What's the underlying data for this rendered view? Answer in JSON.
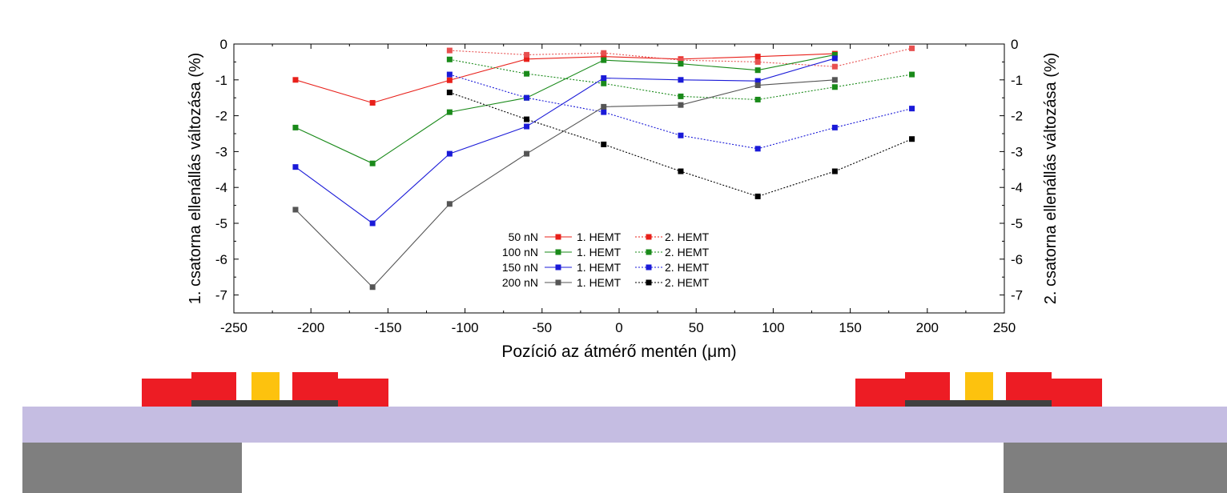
{
  "chart_data": {
    "type": "line",
    "xlabel": "Pozíció az átmérő mentén (μm)",
    "ylabel_left": "1. csatorna ellenállás változása (%)",
    "ylabel_right": "2. csatorna ellenállás változása (%)",
    "xlim": [
      -250,
      250
    ],
    "ylim": [
      -7.5,
      0
    ],
    "xticks": [
      "-250",
      "-200",
      "-150",
      "-100",
      "-50",
      "0",
      "50",
      "100",
      "150",
      "200",
      "250"
    ],
    "yticks": [
      "0",
      "-1",
      "-2",
      "-3",
      "-4",
      "-5",
      "-6",
      "-7"
    ],
    "grid": false,
    "legend_position": "center-bottom",
    "legend_groups": [
      {
        "force": "50 nN",
        "color": "#e8201a",
        "label1": "1. HEMT",
        "label2": "2. HEMT"
      },
      {
        "force": "100 nN",
        "color": "#1a8a1a",
        "label1": "1. HEMT",
        "label2": "2. HEMT"
      },
      {
        "force": "150 nN",
        "color": "#1a1ad8",
        "label1": "1. HEMT",
        "label2": "2. HEMT"
      },
      {
        "force": "200 nN",
        "color": "#555555",
        "color2": "#000000",
        "label1": "1. HEMT",
        "label2": "2. HEMT"
      }
    ],
    "series": [
      {
        "name": "50 nN 1. HEMT",
        "color": "#e8201a",
        "style": "solid",
        "x": [
          -210,
          -160,
          -110,
          -60,
          -10,
          40,
          90,
          140
        ],
        "y": [
          -1.0,
          -1.64,
          -1.01,
          -0.42,
          -0.35,
          -0.42,
          -0.35,
          -0.27
        ]
      },
      {
        "name": "50 nN 2. HEMT",
        "color": "#e85050",
        "style": "dotted",
        "x": [
          -110,
          -60,
          -10,
          40,
          90,
          140,
          190
        ],
        "y": [
          -0.18,
          -0.3,
          -0.25,
          -0.45,
          -0.5,
          -0.63,
          -0.12
        ]
      },
      {
        "name": "100 nN 1. HEMT",
        "color": "#1a8a1a",
        "style": "solid",
        "x": [
          -210,
          -160,
          -110,
          -60,
          -10,
          40,
          90,
          140
        ],
        "y": [
          -2.33,
          -3.33,
          -1.9,
          -1.5,
          -0.45,
          -0.55,
          -0.73,
          -0.3
        ]
      },
      {
        "name": "100 nN 2. HEMT",
        "color": "#1a8a1a",
        "style": "dotted",
        "x": [
          -110,
          -60,
          -10,
          40,
          90,
          140,
          190
        ],
        "y": [
          -0.43,
          -0.83,
          -1.1,
          -1.46,
          -1.55,
          -1.2,
          -0.85
        ]
      },
      {
        "name": "150 nN 1. HEMT",
        "color": "#1a1ad8",
        "style": "solid",
        "x": [
          -210,
          -160,
          -110,
          -60,
          -10,
          40,
          90,
          140
        ],
        "y": [
          -3.43,
          -5.0,
          -3.06,
          -2.3,
          -0.95,
          -1.0,
          -1.03,
          -0.4
        ]
      },
      {
        "name": "150 nN 2. HEMT",
        "color": "#1a1ad8",
        "style": "dotted",
        "x": [
          -110,
          -60,
          -10,
          40,
          90,
          140,
          190
        ],
        "y": [
          -0.85,
          -1.5,
          -1.9,
          -2.55,
          -2.92,
          -2.33,
          -1.8
        ]
      },
      {
        "name": "200 nN 1. HEMT",
        "color": "#555555",
        "style": "solid",
        "x": [
          -210,
          -160,
          -110,
          -60,
          -10,
          40,
          90,
          140
        ],
        "y": [
          -4.62,
          -6.78,
          -4.46,
          -3.06,
          -1.75,
          -1.7,
          -1.15,
          -1.0
        ]
      },
      {
        "name": "200 nN 2. HEMT",
        "color": "#000000",
        "style": "dotted",
        "x": [
          -110,
          -60,
          -10,
          40,
          90,
          140,
          190
        ],
        "y": [
          -1.35,
          -2.1,
          -2.8,
          -3.55,
          -4.25,
          -3.55,
          -2.65
        ]
      }
    ]
  },
  "device_colors": {
    "substrate": "#7f7f7f",
    "membrane": "#c5bde2",
    "contact": "#ed1c24",
    "gate": "#fdc20e",
    "channel": "#404040"
  }
}
